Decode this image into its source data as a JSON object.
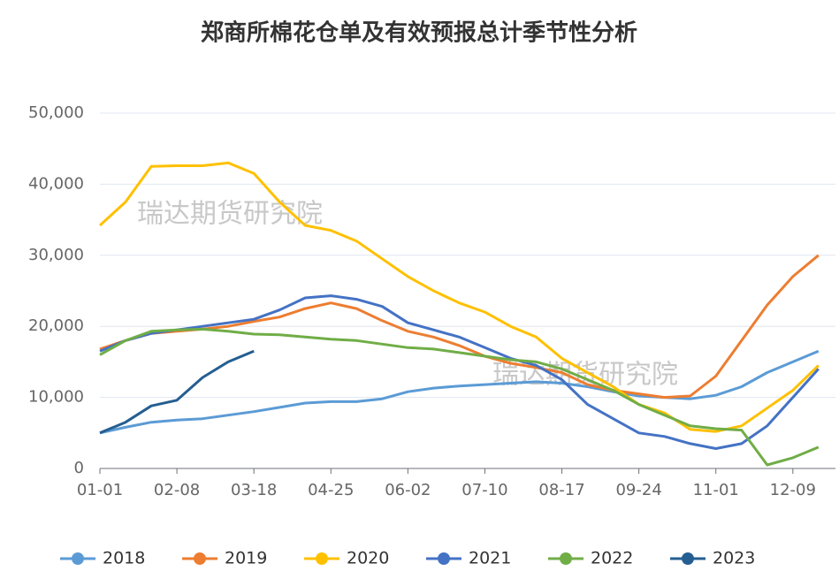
{
  "chart_data": {
    "type": "line",
    "title": "郑商所棉花仓单及有效预报总计季节性分析",
    "watermarks": [
      "瑞达期货研究院",
      "瑞达期货研究院"
    ],
    "categories": [
      "01-01",
      null,
      null,
      "02-08",
      null,
      null,
      "03-18",
      null,
      null,
      "04-25",
      null,
      null,
      "06-02",
      null,
      null,
      "07-10",
      null,
      null,
      "08-17",
      null,
      null,
      "09-24",
      null,
      null,
      "11-01",
      null,
      null,
      "12-09",
      null
    ],
    "ylim": [
      0,
      50000
    ],
    "yticks": [
      0,
      {
        "value": 10000,
        "label": "10,000"
      },
      {
        "value": 20000,
        "label": "20,000"
      },
      {
        "value": 30000,
        "label": "30,000"
      },
      {
        "value": 40000,
        "label": "40,000"
      },
      {
        "value": 50000,
        "label": "50,000"
      }
    ],
    "grid": true,
    "legend": "bottom",
    "series": [
      {
        "name": "2018",
        "color": "#5b9bd5",
        "values": [
          5000,
          5800,
          6500,
          6800,
          7000,
          7500,
          8000,
          8600,
          9200,
          9400,
          9400,
          9800,
          10800,
          11300,
          11600,
          11800,
          12000,
          12200,
          12000,
          11500,
          10800,
          10200,
          10000,
          9800,
          10300,
          11500,
          13500,
          15000,
          16500
        ]
      },
      {
        "name": "2019",
        "color": "#ed7d31",
        "values": [
          16800,
          18000,
          19000,
          19300,
          19600,
          20000,
          20700,
          21300,
          22500,
          23300,
          22500,
          20800,
          19300,
          18500,
          17300,
          15800,
          14800,
          14200,
          13500,
          11800,
          11000,
          10500,
          10000,
          10200,
          13000,
          18000,
          23000,
          27000,
          30000
        ]
      },
      {
        "name": "2020",
        "color": "#ffc000",
        "values": [
          34200,
          37500,
          42500,
          42600,
          42600,
          43000,
          41500,
          37500,
          34200,
          33500,
          32000,
          29500,
          27000,
          25000,
          23300,
          22000,
          20000,
          18500,
          15500,
          13500,
          11500,
          9000,
          7800,
          5500,
          5200,
          6000,
          8500,
          11000,
          14500
        ]
      },
      {
        "name": "2021",
        "color": "#4472c4",
        "values": [
          16500,
          18000,
          19000,
          19500,
          20000,
          20500,
          21000,
          22300,
          24000,
          24300,
          23800,
          22800,
          20500,
          19500,
          18500,
          17000,
          15500,
          14500,
          12500,
          9000,
          7000,
          5000,
          4500,
          3500,
          2800,
          3500,
          6000,
          10000,
          14000
        ]
      },
      {
        "name": "2022",
        "color": "#70ad47",
        "values": [
          16000,
          18000,
          19300,
          19500,
          19600,
          19300,
          18900,
          18800,
          18500,
          18200,
          18000,
          17500,
          17000,
          16800,
          16300,
          15800,
          15300,
          15000,
          14000,
          12500,
          11000,
          9000,
          7500,
          6000,
          5600,
          5400,
          500,
          1500,
          3000
        ]
      },
      {
        "name": "2023",
        "color": "#255e91",
        "values": [
          5000,
          6500,
          8800,
          9600,
          12800,
          15000,
          16500,
          null,
          null,
          null,
          null,
          null,
          null,
          null,
          null,
          null,
          null,
          null,
          null,
          null,
          null,
          null,
          null,
          null,
          null,
          null,
          null,
          null,
          null
        ]
      }
    ]
  }
}
